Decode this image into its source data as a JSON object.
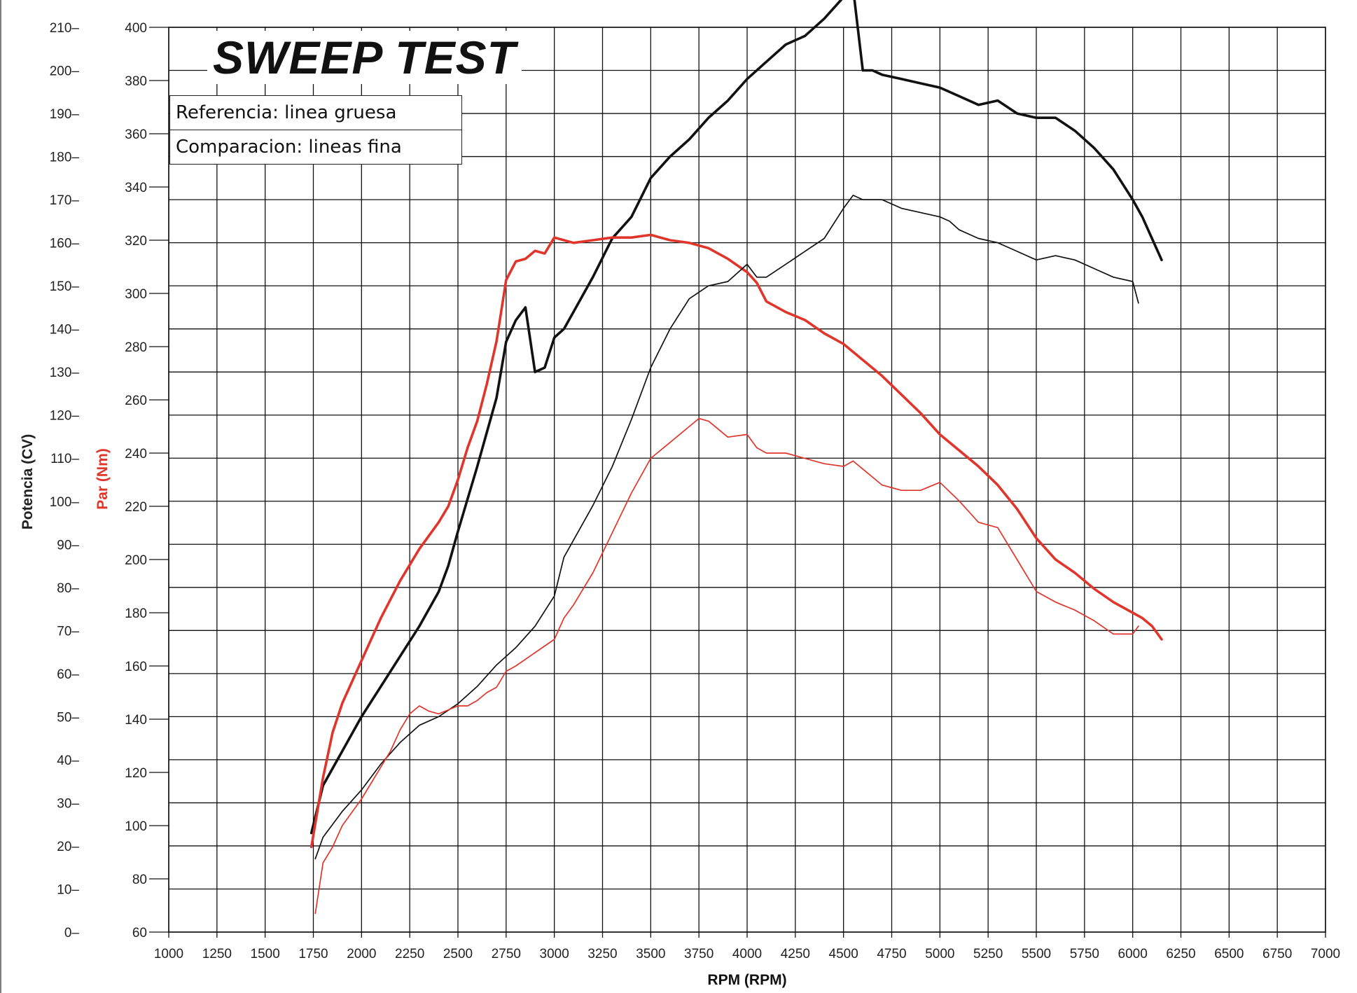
{
  "chart_data": {
    "type": "line",
    "title": "SWEEP TEST",
    "legend": [
      {
        "label": "Referencia: linea gruesa"
      },
      {
        "label": "Comparacion: lineas fina"
      }
    ],
    "xlabel": "RPM (RPM)",
    "ylabel_left": "Potencia (CV)",
    "ylabel_right": "Par (Nm)",
    "x_ticks": [
      1000,
      1250,
      1500,
      1750,
      2000,
      2250,
      2500,
      2750,
      3000,
      3250,
      3500,
      3750,
      4000,
      4250,
      4500,
      4750,
      5000,
      5250,
      5500,
      5750,
      6000,
      6250,
      6500,
      6750,
      7000
    ],
    "x_tick_labels": [
      "1000",
      "1250",
      "1500",
      "1750",
      "2000",
      "2250",
      "2500",
      "2750",
      "3000",
      "3250",
      "3500",
      "3750",
      "4000",
      "4250",
      "4500",
      "4750",
      "5000",
      "5250",
      "5500",
      "5750",
      "6000",
      "6250",
      "6500",
      "6750",
      "7000"
    ],
    "xlim": [
      1000,
      7000
    ],
    "power_ticks": [
      0,
      10,
      20,
      30,
      40,
      50,
      60,
      70,
      80,
      90,
      100,
      110,
      120,
      130,
      140,
      150,
      160,
      170,
      180,
      190,
      200,
      210
    ],
    "power_tick_labels": [
      "0",
      "10",
      "20",
      "30",
      "40",
      "50",
      "60",
      "70",
      "80",
      "90",
      "100",
      "110",
      "120",
      "130",
      "140",
      "150",
      "160",
      "170",
      "180",
      "190",
      "200",
      "210"
    ],
    "power_lim": [
      0,
      210
    ],
    "torque_ticks": [
      60,
      80,
      100,
      120,
      140,
      160,
      180,
      200,
      220,
      240,
      260,
      280,
      300,
      320,
      340,
      360,
      380,
      400
    ],
    "torque_tick_labels": [
      "60",
      "80",
      "100",
      "120",
      "140",
      "160",
      "180",
      "200",
      "220",
      "240",
      "260",
      "280",
      "300",
      "320",
      "340",
      "360",
      "380",
      "400"
    ],
    "torque_lim": [
      60,
      400
    ],
    "colors": {
      "power": "#111111",
      "torque": "#e0352b",
      "grid": "#111111",
      "ylabel_power": "#222222",
      "ylabel_torque": "#e0352b"
    },
    "series": [
      {
        "name": "Potencia referencia",
        "axis": "power",
        "style": "thick",
        "x": [
          1740,
          1800,
          1900,
          2000,
          2100,
          2200,
          2300,
          2400,
          2450,
          2500,
          2600,
          2700,
          2750,
          2800,
          2850,
          2900,
          2950,
          3000,
          3050,
          3100,
          3200,
          3300,
          3400,
          3500,
          3600,
          3700,
          3800,
          3900,
          4000,
          4100,
          4200,
          4300,
          4400,
          4500,
          4550,
          4600,
          4650,
          4700,
          4800,
          4900,
          5000,
          5100,
          5200,
          5300,
          5400,
          5500,
          5600,
          5700,
          5800,
          5900,
          6000,
          6050,
          6100,
          6150
        ],
        "values": [
          23,
          34,
          42,
          50,
          57,
          64,
          71,
          79,
          85,
          93,
          108,
          124,
          137,
          142,
          145,
          130,
          131,
          138,
          140,
          144,
          152,
          161,
          166,
          175,
          180,
          184,
          189,
          193,
          198,
          202,
          206,
          208,
          212,
          217,
          219,
          200,
          200,
          199,
          198,
          197,
          196,
          194,
          192,
          193,
          190,
          189,
          189,
          186,
          182,
          177,
          170,
          166,
          161,
          156
        ]
      },
      {
        "name": "Par referencia",
        "axis": "torque",
        "style": "thick",
        "x": [
          1740,
          1800,
          1850,
          1900,
          2000,
          2100,
          2200,
          2300,
          2400,
          2450,
          2500,
          2550,
          2600,
          2650,
          2700,
          2750,
          2800,
          2850,
          2900,
          2950,
          3000,
          3050,
          3100,
          3200,
          3300,
          3400,
          3500,
          3600,
          3700,
          3800,
          3900,
          4000,
          4050,
          4100,
          4200,
          4300,
          4400,
          4500,
          4600,
          4700,
          4800,
          4900,
          5000,
          5100,
          5200,
          5300,
          5400,
          5500,
          5600,
          5700,
          5800,
          5900,
          6000,
          6050,
          6100,
          6150
        ],
        "values": [
          92,
          118,
          135,
          146,
          162,
          178,
          192,
          204,
          214,
          220,
          230,
          242,
          252,
          266,
          282,
          305,
          312,
          313,
          316,
          315,
          321,
          320,
          319,
          320,
          321,
          321,
          322,
          320,
          319,
          317,
          313,
          308,
          304,
          297,
          293,
          290,
          285,
          281,
          275,
          269,
          262,
          255,
          247,
          241,
          235,
          228,
          219,
          208,
          200,
          195,
          189,
          184,
          180,
          178,
          175,
          170
        ]
      },
      {
        "name": "Potencia comparacion",
        "axis": "power",
        "style": "thin",
        "x": [
          1760,
          1800,
          1900,
          2000,
          2100,
          2200,
          2300,
          2400,
          2500,
          2600,
          2700,
          2800,
          2900,
          3000,
          3050,
          3100,
          3200,
          3300,
          3400,
          3500,
          3600,
          3700,
          3800,
          3900,
          4000,
          4050,
          4100,
          4200,
          4300,
          4400,
          4500,
          4550,
          4600,
          4650,
          4700,
          4800,
          4900,
          5000,
          5050,
          5100,
          5200,
          5300,
          5400,
          5500,
          5600,
          5700,
          5800,
          5900,
          6000,
          6030
        ],
        "values": [
          17,
          22,
          28,
          33,
          39,
          44,
          48,
          50,
          53,
          57,
          62,
          66,
          71,
          78,
          87,
          91,
          99,
          108,
          119,
          131,
          140,
          147,
          150,
          151,
          155,
          152,
          152,
          155,
          158,
          161,
          168,
          171,
          170,
          170,
          170,
          168,
          167,
          166,
          165,
          163,
          161,
          160,
          158,
          156,
          157,
          156,
          154,
          152,
          151,
          146
        ]
      },
      {
        "name": "Par comparacion",
        "axis": "torque",
        "style": "thin",
        "x": [
          1760,
          1800,
          1850,
          1900,
          2000,
          2100,
          2150,
          2200,
          2250,
          2300,
          2350,
          2400,
          2500,
          2550,
          2600,
          2650,
          2700,
          2750,
          2800,
          2900,
          3000,
          3050,
          3100,
          3200,
          3300,
          3400,
          3500,
          3600,
          3700,
          3750,
          3800,
          3900,
          4000,
          4050,
          4100,
          4200,
          4300,
          4400,
          4500,
          4550,
          4600,
          4700,
          4800,
          4900,
          5000,
          5100,
          5200,
          5300,
          5400,
          5500,
          5600,
          5700,
          5800,
          5900,
          6000,
          6030
        ],
        "values": [
          67,
          86,
          92,
          100,
          110,
          122,
          128,
          136,
          142,
          145,
          143,
          142,
          145,
          145,
          147,
          150,
          152,
          158,
          160,
          165,
          170,
          178,
          183,
          195,
          210,
          225,
          238,
          244,
          250,
          253,
          252,
          246,
          247,
          242,
          240,
          240,
          238,
          236,
          235,
          237,
          234,
          228,
          226,
          226,
          229,
          222,
          214,
          212,
          200,
          188,
          184,
          181,
          177,
          172,
          172,
          175
        ]
      }
    ]
  }
}
